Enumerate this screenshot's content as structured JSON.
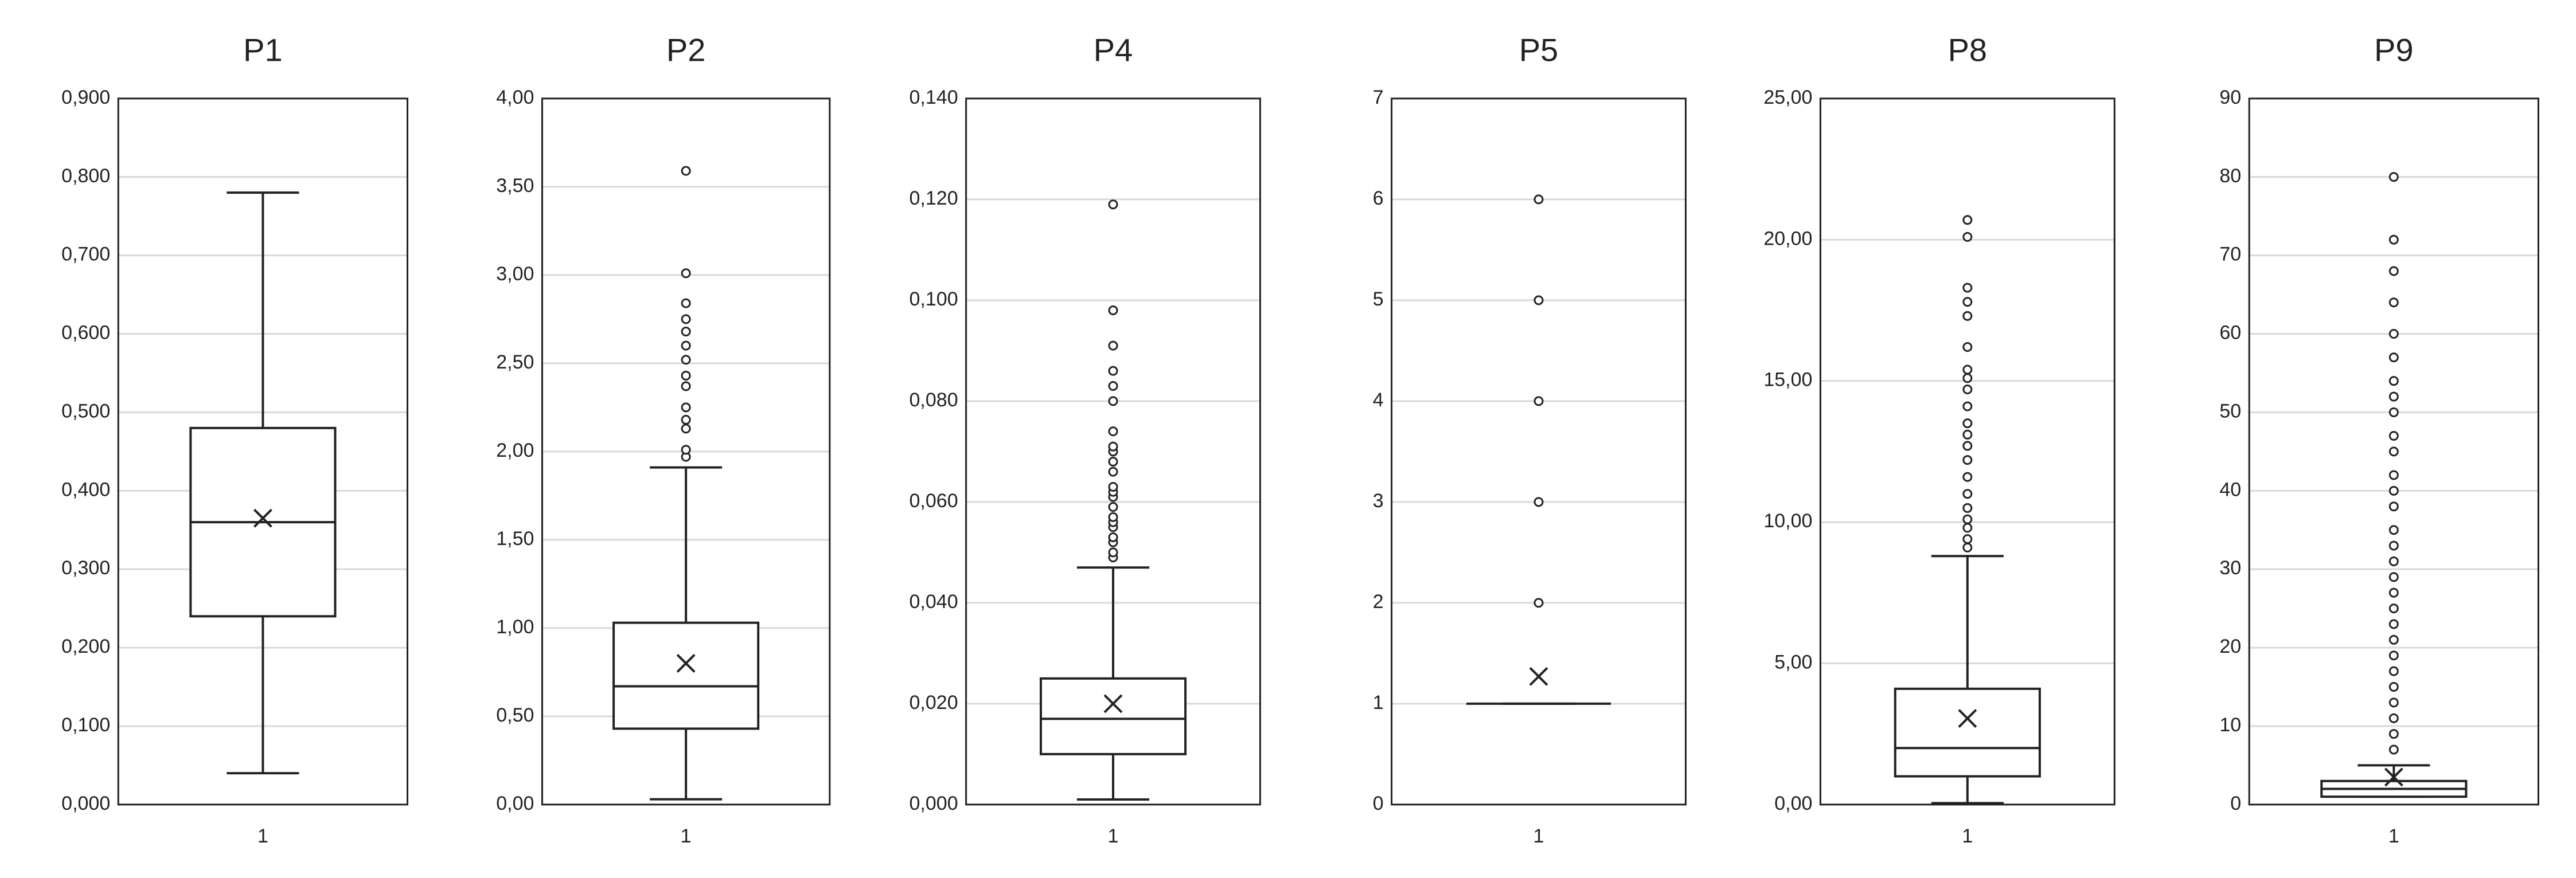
{
  "chart_data": [
    {
      "type": "box",
      "title": "P1",
      "categories": [
        "1"
      ],
      "min": 0.04,
      "q1": 0.24,
      "median": 0.36,
      "q3": 0.48,
      "max": 0.78,
      "mean": 0.365,
      "outliers": [],
      "ylim": [
        0,
        0.9
      ],
      "yticks": [
        {
          "value": 0,
          "label": "0,000"
        },
        {
          "value": 0.1,
          "label": "0,100"
        },
        {
          "value": 0.2,
          "label": "0,200"
        },
        {
          "value": 0.3,
          "label": "0,300"
        },
        {
          "value": 0.4,
          "label": "0,400"
        },
        {
          "value": 0.5,
          "label": "0,500"
        },
        {
          "value": 0.6,
          "label": "0,600"
        },
        {
          "value": 0.7,
          "label": "0,700"
        },
        {
          "value": 0.8,
          "label": "0,800"
        },
        {
          "value": 0.9,
          "label": "0,900"
        }
      ],
      "grid": true
    },
    {
      "type": "box",
      "title": "P2",
      "categories": [
        "1"
      ],
      "min": 0.03,
      "q1": 0.43,
      "median": 0.67,
      "q3": 1.03,
      "max": 1.91,
      "mean": 0.8,
      "outliers": [
        1.97,
        2.01,
        2.13,
        2.18,
        2.25,
        2.37,
        2.43,
        2.52,
        2.6,
        2.68,
        2.75,
        2.84,
        3.01,
        3.59
      ],
      "ylim": [
        0,
        4
      ],
      "yticks": [
        {
          "value": 0,
          "label": "0,00"
        },
        {
          "value": 0.5,
          "label": "0,50"
        },
        {
          "value": 1,
          "label": "1,00"
        },
        {
          "value": 1.5,
          "label": "1,50"
        },
        {
          "value": 2,
          "label": "2,00"
        },
        {
          "value": 2.5,
          "label": "2,50"
        },
        {
          "value": 3,
          "label": "3,00"
        },
        {
          "value": 3.5,
          "label": "3,50"
        },
        {
          "value": 4,
          "label": "4,00"
        }
      ],
      "grid": true
    },
    {
      "type": "box",
      "title": "P4",
      "categories": [
        "1"
      ],
      "min": 0.001,
      "q1": 0.01,
      "median": 0.017,
      "q3": 0.025,
      "max": 0.047,
      "mean": 0.02,
      "outliers": [
        0.049,
        0.05,
        0.052,
        0.053,
        0.055,
        0.056,
        0.057,
        0.059,
        0.061,
        0.062,
        0.063,
        0.066,
        0.068,
        0.07,
        0.071,
        0.074,
        0.08,
        0.083,
        0.086,
        0.091,
        0.098,
        0.119
      ],
      "ylim": [
        0,
        0.14
      ],
      "yticks": [
        {
          "value": 0,
          "label": "0,000"
        },
        {
          "value": 0.02,
          "label": "0,020"
        },
        {
          "value": 0.04,
          "label": "0,040"
        },
        {
          "value": 0.06,
          "label": "0,060"
        },
        {
          "value": 0.08,
          "label": "0,080"
        },
        {
          "value": 0.1,
          "label": "0,100"
        },
        {
          "value": 0.12,
          "label": "0,120"
        },
        {
          "value": 0.14,
          "label": "0,140"
        }
      ],
      "grid": true
    },
    {
      "type": "box",
      "title": "P5",
      "categories": [
        "1"
      ],
      "min": 1,
      "q1": 1,
      "median": 1,
      "q3": 1,
      "max": 1,
      "mean": 1.27,
      "outliers": [
        2,
        3,
        4,
        5,
        6
      ],
      "ylim": [
        0,
        7
      ],
      "yticks": [
        0,
        1,
        2,
        3,
        4,
        5,
        6,
        7
      ],
      "grid": true
    },
    {
      "type": "box",
      "title": "P8",
      "categories": [
        "1"
      ],
      "min": 0.05,
      "q1": 1,
      "median": 2,
      "q3": 4.1,
      "max": 8.8,
      "mean": 3.05,
      "outliers": [
        9.1,
        9.4,
        9.8,
        10.1,
        10.5,
        11,
        11.6,
        12.2,
        12.7,
        13.1,
        13.5,
        14.1,
        14.7,
        15.1,
        15.4,
        16.2,
        17.3,
        17.8,
        18.3,
        20.1,
        20.7
      ],
      "ylim": [
        0,
        25
      ],
      "yticks": [
        {
          "value": 0,
          "label": "0,00"
        },
        {
          "value": 5,
          "label": "5,00"
        },
        {
          "value": 10,
          "label": "10,00"
        },
        {
          "value": 15,
          "label": "15,00"
        },
        {
          "value": 20,
          "label": "20,00"
        },
        {
          "value": 25,
          "label": "25,00"
        }
      ],
      "grid": true
    },
    {
      "type": "box",
      "title": "P9",
      "categories": [
        "1"
      ],
      "min": 1,
      "q1": 1,
      "median": 2,
      "q3": 3,
      "max": 5,
      "mean": 3.5,
      "outliers": [
        7,
        9,
        11,
        13,
        15,
        17,
        19,
        21,
        23,
        25,
        27,
        29,
        31,
        33,
        35,
        38,
        40,
        42,
        45,
        47,
        50,
        52,
        54,
        57,
        60,
        64,
        68,
        72,
        80
      ],
      "ylim": [
        0,
        90
      ],
      "yticks": [
        0,
        10,
        20,
        30,
        40,
        50,
        60,
        70,
        80,
        90
      ],
      "grid": true
    }
  ]
}
